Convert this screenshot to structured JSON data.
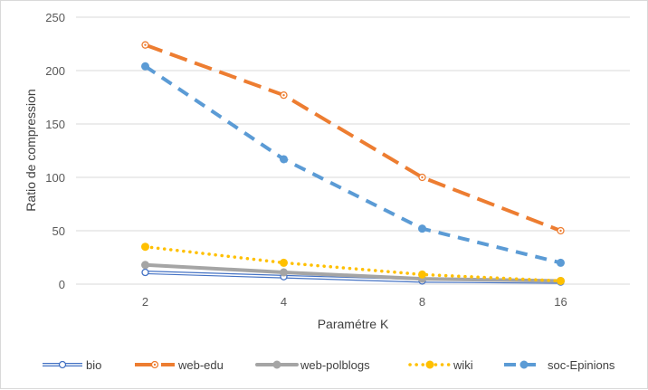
{
  "chart_data": {
    "type": "line",
    "title": "",
    "xlabel": "Paramétre K",
    "ylabel": "Ratio de compression",
    "categories": [
      "2",
      "4",
      "8",
      "16"
    ],
    "ylim": [
      0,
      250
    ],
    "yticks": [
      0,
      50,
      100,
      150,
      200,
      250
    ],
    "grid": true,
    "legend_position": "bottom",
    "series": [
      {
        "name": "bio",
        "values": [
          11,
          7,
          3,
          2
        ],
        "color": "#4472c4",
        "line_style": "double-thin",
        "marker": "hollow-circle"
      },
      {
        "name": "web-edu",
        "values": [
          224,
          177,
          100,
          50
        ],
        "color": "#ed7d31",
        "line_style": "long-dash",
        "marker": "hollow-circle-dot"
      },
      {
        "name": "web-polblogs",
        "values": [
          18,
          11,
          5,
          3
        ],
        "color": "#a5a5a5",
        "line_style": "solid-thick",
        "marker": "filled-circle"
      },
      {
        "name": "wiki",
        "values": [
          35,
          20,
          9,
          3
        ],
        "color": "#ffc000",
        "line_style": "dotted",
        "marker": "filled-circle"
      },
      {
        "name": "soc-Epinions",
        "values": [
          204,
          117,
          52,
          20
        ],
        "color": "#5b9bd5",
        "line_style": "dash",
        "marker": "filled-circle"
      }
    ]
  }
}
